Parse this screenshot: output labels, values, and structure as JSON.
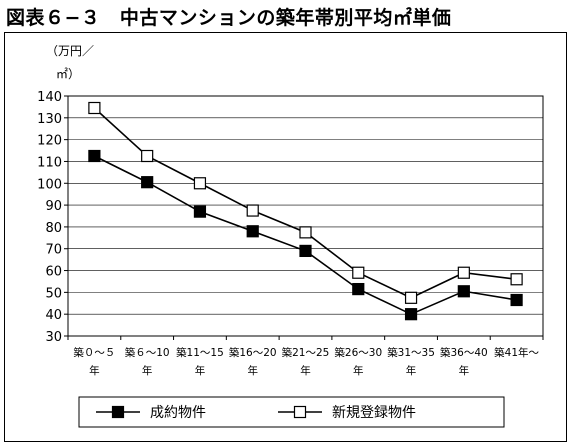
{
  "page_title": "図表６−３　中古マンションの築年帯別平均㎡単価",
  "chart_data": {
    "type": "line",
    "title": "",
    "ylabel_line1": "（万円／",
    "ylabel_line2": "㎡）",
    "xlabel": "",
    "ylim": [
      30,
      140
    ],
    "ytick_step": 10,
    "grid": "horizontal",
    "legend_placement": "bottom",
    "categories": [
      {
        "top": "築０～５",
        "bottom": "年"
      },
      {
        "top": "築６～10",
        "bottom": "年"
      },
      {
        "top": "築11～15",
        "bottom": "年"
      },
      {
        "top": "築16～20",
        "bottom": "年"
      },
      {
        "top": "築21～25",
        "bottom": "年"
      },
      {
        "top": "築26～30",
        "bottom": "年"
      },
      {
        "top": "築31～35",
        "bottom": "年"
      },
      {
        "top": "築36～40",
        "bottom": "年"
      },
      {
        "top": "築41年～",
        "bottom": ""
      }
    ],
    "series": [
      {
        "name": "成約物件",
        "marker": "filled-square",
        "color": "#000000",
        "values": [
          112.5,
          100.5,
          87,
          78,
          69,
          51.5,
          40,
          50.5,
          46.5
        ]
      },
      {
        "name": "新規登録物件",
        "marker": "open-square",
        "color": "#000000",
        "values": [
          134.5,
          112.5,
          100,
          87.5,
          77.5,
          59,
          47.5,
          59,
          56
        ]
      }
    ]
  }
}
